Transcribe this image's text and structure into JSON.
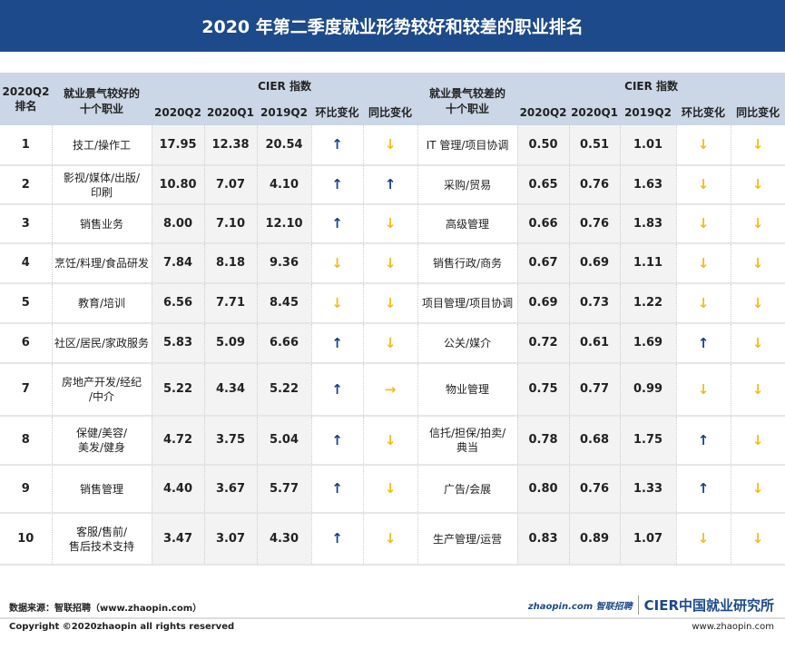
{
  "title": "2020 年第二季度就业形势较好和较差的职业排名",
  "header": {
    "rank": "2020Q2\n排名",
    "good": "就业景气较好的\n十个职业",
    "bad": "就业景气较差的\n十个职业",
    "cier": "CIER 指数",
    "q2_2020": "2020Q2",
    "q1_2020": "2020Q1",
    "q2_2019": "2019Q2",
    "qoq": "环比变化",
    "yoy": "同比变化"
  },
  "colors": {
    "up": "#1a3f8a",
    "down": "#f0bf1a",
    "header_bg": "#cbd6e6",
    "title_bg": "#1d4a8a"
  },
  "rows": [
    {
      "rank": "1",
      "good": "技工/操作工",
      "g": [
        "17.95",
        "12.38",
        "20.54"
      ],
      "gq": "up",
      "gy": "down",
      "bad": "IT 管理/项目协调",
      "b": [
        "0.50",
        "0.51",
        "1.01"
      ],
      "bq": "down",
      "by": "down"
    },
    {
      "rank": "2",
      "good": "影视/媒体/出版/\n印刷",
      "g": [
        "10.80",
        "7.07",
        "4.10"
      ],
      "gq": "up",
      "gy": "up",
      "bad": "采购/贸易",
      "b": [
        "0.65",
        "0.76",
        "1.63"
      ],
      "bq": "down",
      "by": "down"
    },
    {
      "rank": "3",
      "good": "销售业务",
      "g": [
        "8.00",
        "7.10",
        "12.10"
      ],
      "gq": "up",
      "gy": "down",
      "bad": "高级管理",
      "b": [
        "0.66",
        "0.76",
        "1.83"
      ],
      "bq": "down",
      "by": "down"
    },
    {
      "rank": "4",
      "good": "烹饪/料理/食品研发",
      "g": [
        "7.84",
        "8.18",
        "9.36"
      ],
      "gq": "down",
      "gy": "down",
      "bad": "销售行政/商务",
      "b": [
        "0.67",
        "0.69",
        "1.11"
      ],
      "bq": "down",
      "by": "down"
    },
    {
      "rank": "5",
      "good": "教育/培训",
      "g": [
        "6.56",
        "7.71",
        "8.45"
      ],
      "gq": "down",
      "gy": "down",
      "bad": "项目管理/项目协调",
      "b": [
        "0.69",
        "0.73",
        "1.22"
      ],
      "bq": "down",
      "by": "down"
    },
    {
      "rank": "6",
      "good": "社区/居民/家政服务",
      "g": [
        "5.83",
        "5.09",
        "6.66"
      ],
      "gq": "up",
      "gy": "down",
      "bad": "公关/媒介",
      "b": [
        "0.72",
        "0.61",
        "1.69"
      ],
      "bq": "up",
      "by": "down"
    },
    {
      "rank": "7",
      "good": "房地产开发/经纪\n/中介",
      "g": [
        "5.22",
        "4.34",
        "5.22"
      ],
      "gq": "up",
      "gy": "right",
      "bad": "物业管理",
      "b": [
        "0.75",
        "0.77",
        "0.99"
      ],
      "bq": "down",
      "by": "down"
    },
    {
      "rank": "8",
      "good": "保健/美容/\n美发/健身",
      "g": [
        "4.72",
        "3.75",
        "5.04"
      ],
      "gq": "up",
      "gy": "down",
      "bad": "信托/担保/拍卖/\n典当",
      "b": [
        "0.78",
        "0.68",
        "1.75"
      ],
      "bq": "up",
      "by": "down"
    },
    {
      "rank": "9",
      "good": "销售管理",
      "g": [
        "4.40",
        "3.67",
        "5.77"
      ],
      "gq": "up",
      "gy": "down",
      "bad": "广告/会展",
      "b": [
        "0.80",
        "0.76",
        "1.33"
      ],
      "bq": "up",
      "by": "down"
    },
    {
      "rank": "10",
      "good": "客服/售前/\n售后技术支持",
      "g": [
        "3.47",
        "3.07",
        "4.30"
      ],
      "gq": "up",
      "gy": "down",
      "bad": "生产管理/运营",
      "b": [
        "0.83",
        "0.89",
        "1.07"
      ],
      "bq": "down",
      "by": "down"
    }
  ],
  "footer": {
    "source": "数据来源：智联招聘（www.zhaopin.com）",
    "zhaopin_logo": "zhaopin.com 智联招聘",
    "cier_logo": "CIER中国就业研究所",
    "copyright": "Copyright ©2020zhaopin all rights reserved",
    "website": "www.zhaopin.com"
  }
}
